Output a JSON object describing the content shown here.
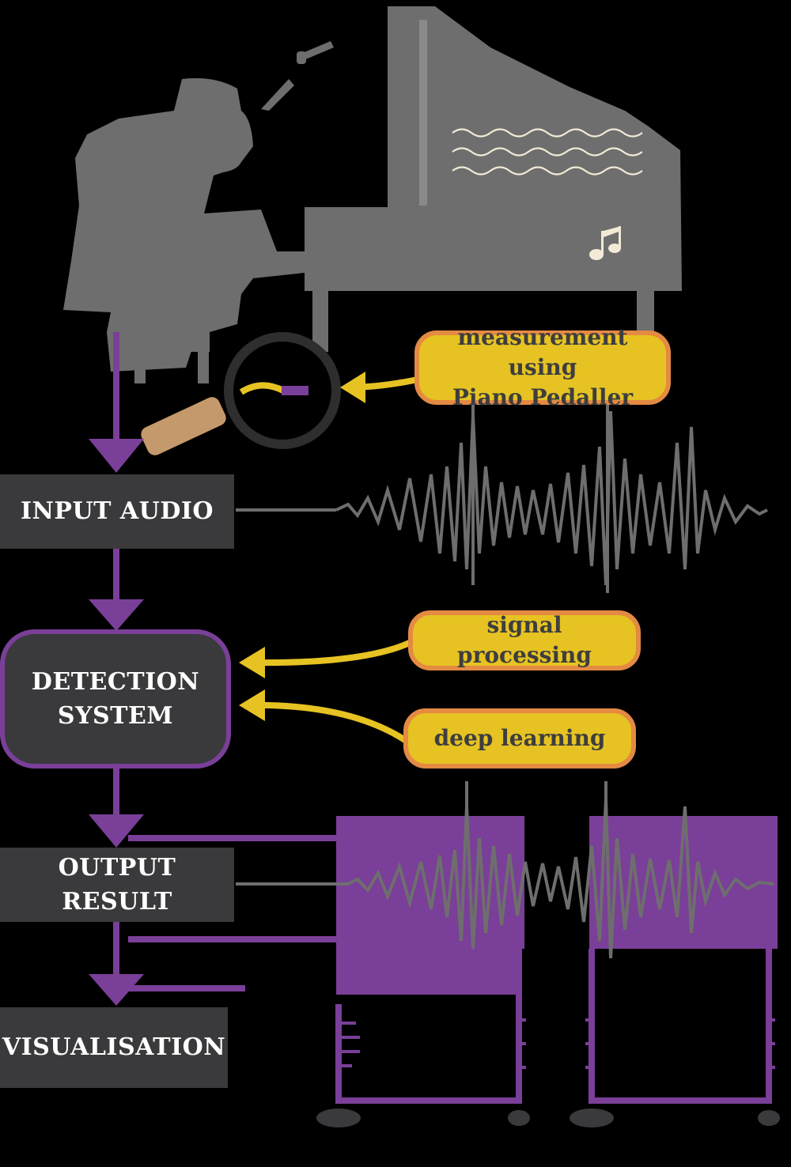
{
  "flow": {
    "input_audio": "INPUT AUDIO",
    "detection_line1": "DETECTION",
    "detection_line2": "SYSTEM",
    "output_result": "OUTPUT RESULT",
    "visualisation": "VISUALISATION"
  },
  "annotations": {
    "measurement_line1": "measurement using",
    "measurement_line2": "Piano Pedaller",
    "signal_processing": "signal processing",
    "deep_learning": "deep learning"
  },
  "icons": {
    "illustration": "pianist-at-grand-piano-icon",
    "magnifier": "magnifying-glass-icon",
    "note": "music-note-icon",
    "waveform": "audio-waveform-icon"
  },
  "colors": {
    "gray_illustration": "#6e6e6e",
    "dark_box": "#3a3a3c",
    "purple": "#7a3f98",
    "yellow": "#e6c322",
    "orange_border": "#e48a43",
    "background": "#000000"
  }
}
